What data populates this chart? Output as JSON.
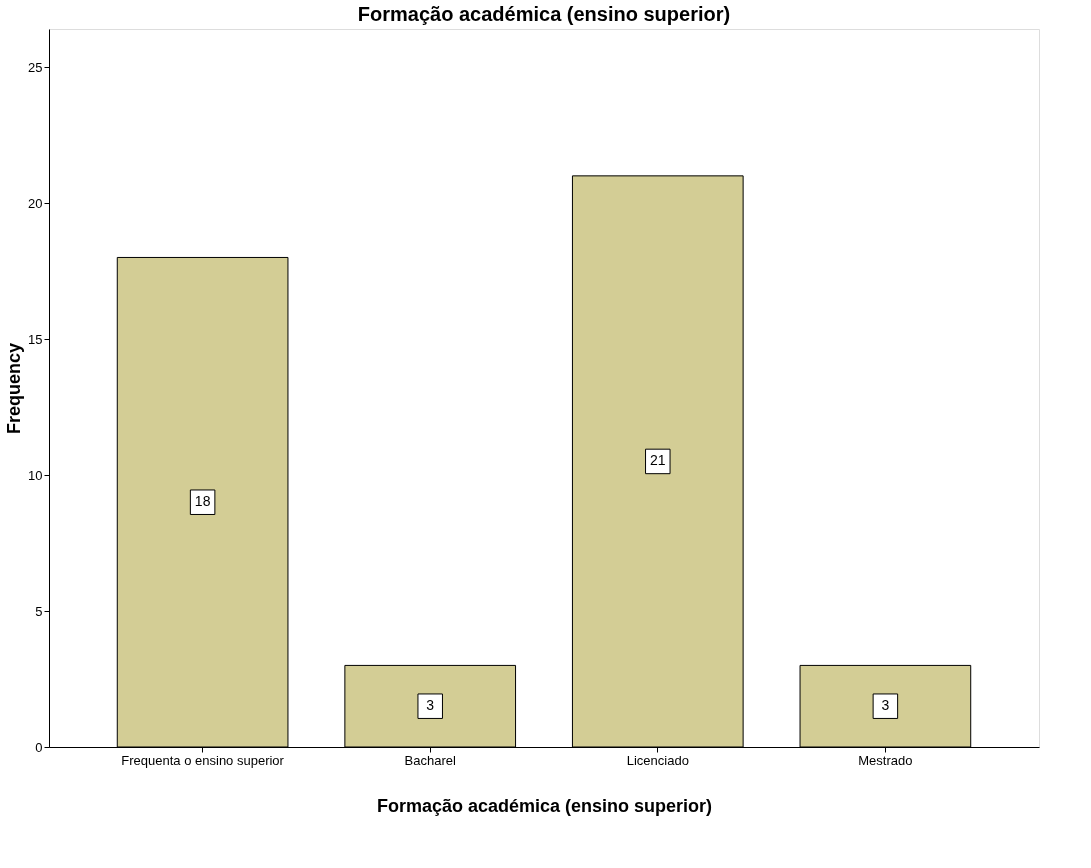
{
  "chart_data": {
    "type": "bar",
    "title": "Formação académica (ensino superior)",
    "xlabel": "Formação académica (ensino superior)",
    "ylabel": "Frequency",
    "categories": [
      "Frequenta o ensino superior",
      "Bacharel",
      "Licenciado",
      "Mestrado"
    ],
    "values": [
      18,
      3,
      21,
      3
    ],
    "color": "#d3cd95",
    "ylim": [
      0,
      26.4
    ],
    "yticks": [
      0,
      5,
      10,
      15,
      20,
      25
    ],
    "grid": false,
    "data_labels": true
  }
}
